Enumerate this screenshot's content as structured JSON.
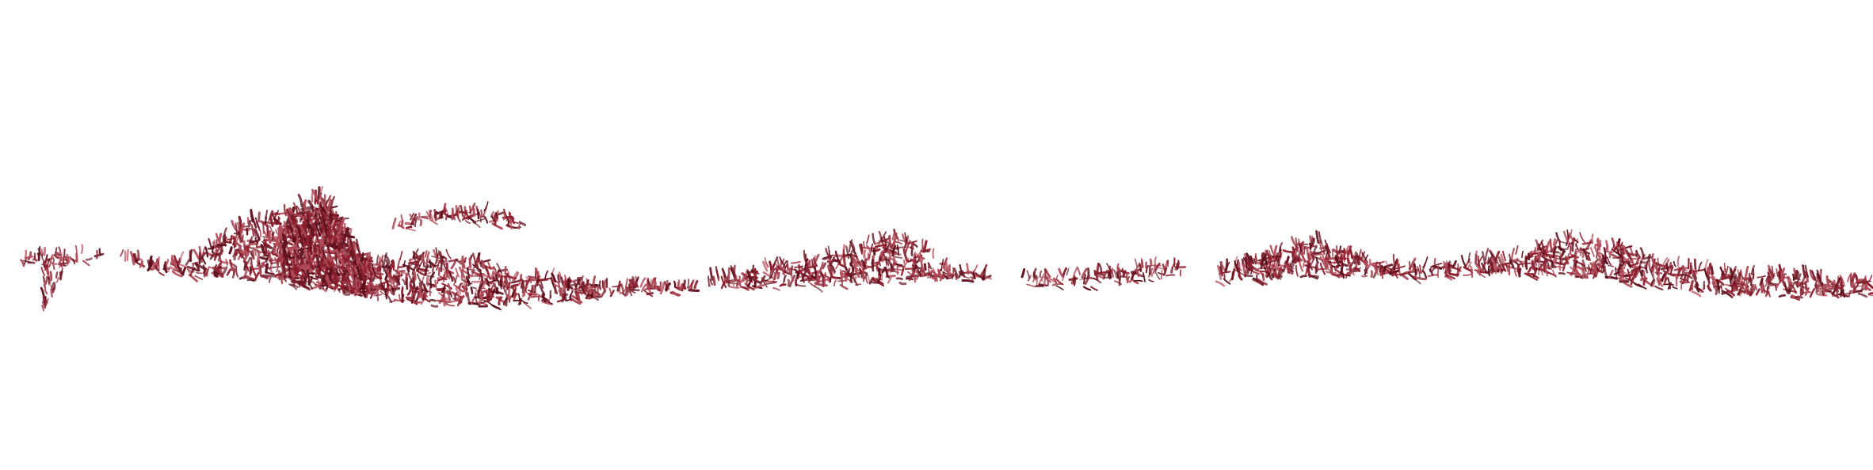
{
  "image": {
    "background_color": "#ffffff",
    "ink_color": "#8b1e2d",
    "ink_dark_color": "#5e0f1c",
    "ink_light_color": "#b04a58",
    "text": []
  }
}
